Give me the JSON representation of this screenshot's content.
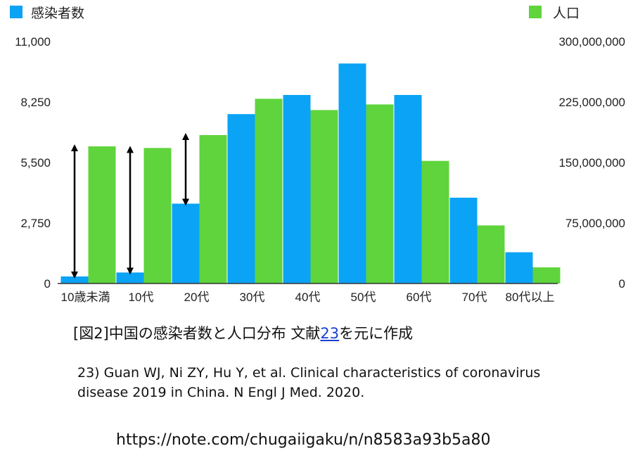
{
  "chart_data": {
    "type": "bar",
    "categories": [
      "10歳未満",
      "10代",
      "20代",
      "30代",
      "40代",
      "50代",
      "60代",
      "70代",
      "80代以上"
    ],
    "series": [
      {
        "name": "感染者数",
        "axis": "left",
        "color": "#0aa3f5",
        "values": [
          320,
          500,
          3630,
          7700,
          8570,
          10000,
          8570,
          3900,
          1420
        ]
      },
      {
        "name": "人口",
        "axis": "right",
        "color": "#5fd43c",
        "values": [
          170000000,
          168000000,
          184000000,
          229000000,
          215000000,
          222000000,
          152000000,
          72000000,
          20000000
        ]
      }
    ],
    "y_left": {
      "ylim": [
        0,
        11000
      ],
      "ticks": [
        "0",
        "2,750",
        "5,500",
        "8,250",
        "11,000"
      ]
    },
    "y_right": {
      "ylim": [
        0,
        300000000
      ],
      "ticks": [
        "0",
        "75,000,000",
        "150,000,000",
        "225,000,000",
        "300,000,000"
      ]
    },
    "legend_placement": "top (left: 感染者数, right: 人口)",
    "annotations": "double-headed black arrows spanning the gap between 感染者数 and 人口 bars for 10歳未満, 10代, 20代",
    "arrow_categories": [
      0,
      1,
      2
    ],
    "grid": false
  },
  "caption": {
    "prefix": "[図2]中国の感染者数と人口分布  文献",
    "link": "23",
    "suffix": "を元に作成"
  },
  "reference": "23) Guan WJ, Ni ZY, Hu Y, et al. Clinical characteristics of coronavirus disease 2019 in China. N Engl J Med. 2020.",
  "source_url": "https://note.com/chugaiigaku/n/n8583a93b5a80"
}
